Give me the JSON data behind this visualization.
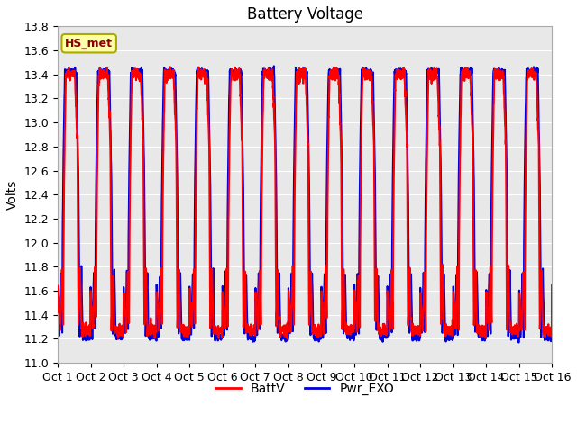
{
  "title": "Battery Voltage",
  "ylabel": "Volts",
  "xlabel": "",
  "ylim": [
    11.0,
    13.8
  ],
  "yticks": [
    11.0,
    11.2,
    11.4,
    11.6,
    11.8,
    12.0,
    12.2,
    12.4,
    12.6,
    12.8,
    13.0,
    13.2,
    13.4,
    13.6,
    13.8
  ],
  "xtick_labels": [
    "Oct 1",
    "Oct 2",
    "Oct 3",
    "Oct 4",
    "Oct 5",
    "Oct 6",
    "Oct 7",
    "Oct 8",
    "Oct 9",
    "Oct 10",
    "Oct 11",
    "Oct 12",
    "Oct 13",
    "Oct 14",
    "Oct 15",
    "Oct 16"
  ],
  "n_days": 15,
  "color_red": "#FF0000",
  "color_blue": "#0000DD",
  "legend_labels": [
    "BattV",
    "Pwr_EXO"
  ],
  "annotation_text": "HS_met",
  "annotation_bg": "#FFFFAA",
  "annotation_border": "#AAAA00",
  "plot_bg": "#E8E8E8",
  "fig_bg": "#FFFFFF",
  "title_fontsize": 12,
  "axis_fontsize": 10,
  "tick_fontsize": 9,
  "linewidth": 1.5
}
